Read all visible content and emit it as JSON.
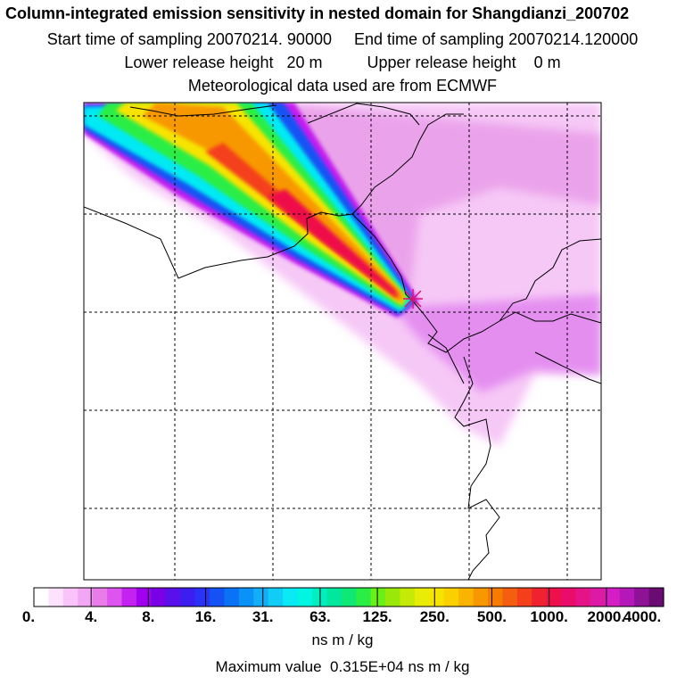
{
  "header": {
    "title": "Column-integrated emission sensitivity in nested domain for Shangdianzi_200702",
    "sampling": "Start time of sampling 20070214. 90000     End time of sampling 20070214.120000",
    "release": "Lower release height   20 m          Upper release height    0 m",
    "meteo": "Meteorological data used are from ECMWF"
  },
  "colorbar": {
    "tick_labels": [
      "0.",
      "4.",
      "8.",
      "16.",
      "31.",
      "63.",
      "125.",
      "250.",
      "500.",
      "1000.",
      "2000.",
      "4000."
    ],
    "colors": [
      "#ffffff",
      "#fde2fd",
      "#f9c4f9",
      "#f3a6f3",
      "#e97ce9",
      "#dd55ee",
      "#c422f0",
      "#a000ee",
      "#7a00e6",
      "#5a10ea",
      "#3c1ef0",
      "#2a32f6",
      "#1452f4",
      "#0a72f4",
      "#0a92f6",
      "#12aef8",
      "#12ccf8",
      "#0aeaf4",
      "#00f6e0",
      "#00eec0",
      "#00e89e",
      "#10e876",
      "#2aee44",
      "#6af016",
      "#9ae80a",
      "#c6ea08",
      "#e8ec06",
      "#f6e400",
      "#fad000",
      "#fab400",
      "#f89800",
      "#f67c00",
      "#f45e10",
      "#f4401a",
      "#f02230",
      "#ee104a",
      "#ea0c6a",
      "#e41488",
      "#dc1aa6",
      "#d41ec4",
      "#b418b8",
      "#8e1296",
      "#6a0c72"
    ],
    "units": "ns m / kg"
  },
  "footer": {
    "max_value": "Maximum value  0.315E+04 ns m / kg"
  },
  "map": {
    "receptor_marker": "receptor-cross-icon",
    "plume_colors": {
      "outer": "#f6c8f6",
      "band1": "#c41ef0",
      "band2": "#1452f4",
      "band3": "#00eaf4",
      "band4": "#2aee44",
      "band5": "#f6e400",
      "band6": "#f89800",
      "band7": "#f4401a",
      "core": "#ee104a"
    }
  }
}
